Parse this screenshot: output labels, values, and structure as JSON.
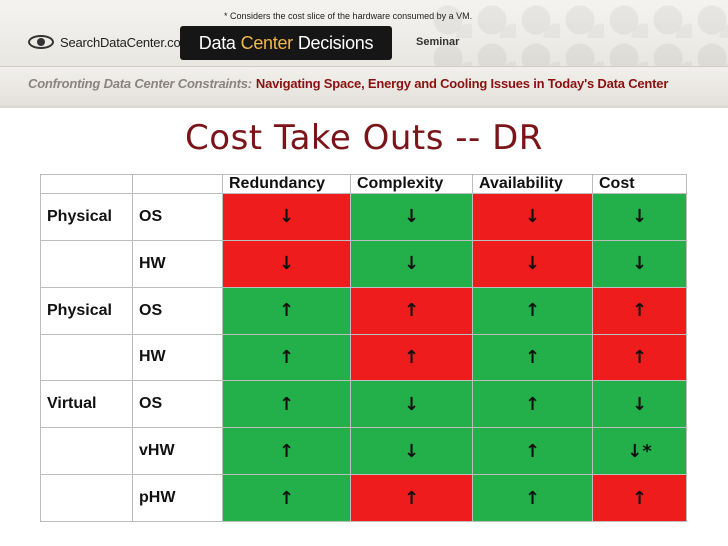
{
  "banner": {
    "footnote": "* Considers the cost slice of the hardware consumed by a VM.",
    "logo_text": "SearchDataCenter.com",
    "event_word1": "Data",
    "event_word2": "Center",
    "event_word3": "Decisions",
    "seminar": "Seminar",
    "subtitle_lead": "Confronting Data Center Constraints:",
    "subtitle_rest": "Navigating Space, Energy and Cooling Issues in Today's Data Center"
  },
  "title": "Cost Take Outs -- DR",
  "colors": {
    "red": "#ee1c1c",
    "green": "#23b04b",
    "title": "#7a1418"
  },
  "table": {
    "headers": [
      "",
      "",
      "Redundancy",
      "Complexity",
      "Availability",
      "Cost"
    ],
    "rows": [
      {
        "category": "Physical",
        "component": "OS",
        "cells": [
          {
            "arrow": "↓",
            "color": "red"
          },
          {
            "arrow": "↓",
            "color": "green"
          },
          {
            "arrow": "↓",
            "color": "red"
          },
          {
            "arrow": "↓",
            "color": "green"
          }
        ]
      },
      {
        "category": "",
        "component": "HW",
        "cells": [
          {
            "arrow": "↓",
            "color": "red"
          },
          {
            "arrow": "↓",
            "color": "green"
          },
          {
            "arrow": "↓",
            "color": "red"
          },
          {
            "arrow": "↓",
            "color": "green"
          }
        ]
      },
      {
        "category": "Physical",
        "component": "OS",
        "cells": [
          {
            "arrow": "↑",
            "color": "green"
          },
          {
            "arrow": "↑",
            "color": "red"
          },
          {
            "arrow": "↑",
            "color": "green"
          },
          {
            "arrow": "↑",
            "color": "red"
          }
        ]
      },
      {
        "category": "",
        "component": "HW",
        "cells": [
          {
            "arrow": "↑",
            "color": "green"
          },
          {
            "arrow": "↑",
            "color": "red"
          },
          {
            "arrow": "↑",
            "color": "green"
          },
          {
            "arrow": "↑",
            "color": "red"
          }
        ]
      },
      {
        "category": "Virtual",
        "component": "OS",
        "cells": [
          {
            "arrow": "↑",
            "color": "green"
          },
          {
            "arrow": "↓",
            "color": "green"
          },
          {
            "arrow": "↑",
            "color": "green"
          },
          {
            "arrow": "↓",
            "color": "green"
          }
        ]
      },
      {
        "category": "",
        "component": "vHW",
        "cells": [
          {
            "arrow": "↑",
            "color": "green"
          },
          {
            "arrow": "↓",
            "color": "green"
          },
          {
            "arrow": "↑",
            "color": "green"
          },
          {
            "arrow": "↓*",
            "color": "green"
          }
        ]
      },
      {
        "category": "",
        "component": "pHW",
        "cells": [
          {
            "arrow": "↑",
            "color": "green"
          },
          {
            "arrow": "↑",
            "color": "red"
          },
          {
            "arrow": "↑",
            "color": "green"
          },
          {
            "arrow": "↑",
            "color": "red"
          }
        ]
      }
    ]
  }
}
